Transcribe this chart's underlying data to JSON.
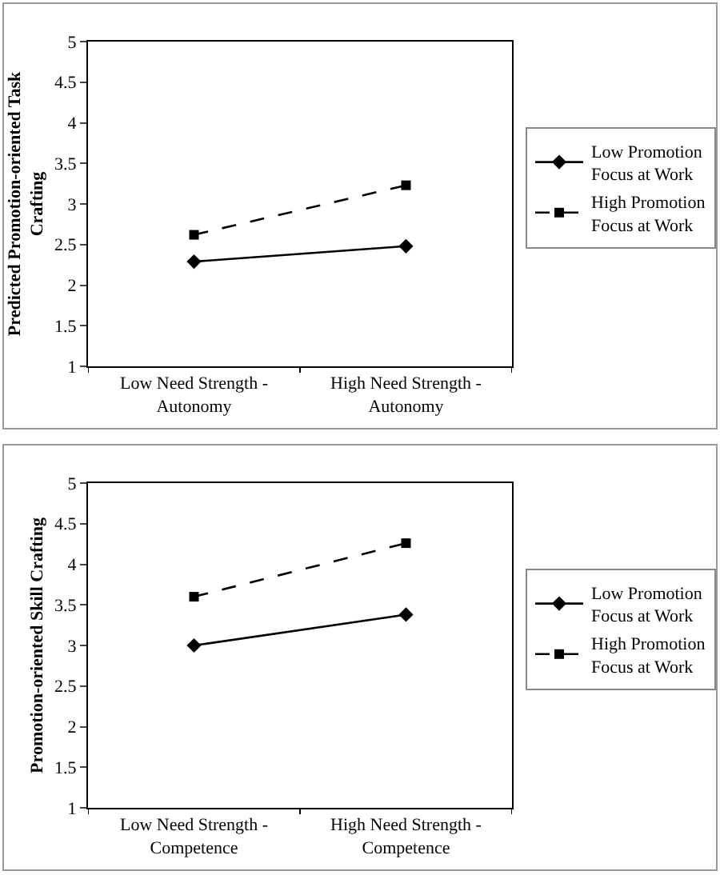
{
  "chart_data": [
    {
      "type": "line",
      "ylabel": "Predicted Promotion-oriented Task\nCrafting",
      "categories": [
        "Low Need Strength -\nAutonomy",
        "High Need Strength -\nAutonomy"
      ],
      "ylim": [
        1,
        5
      ],
      "yticks": [
        1,
        1.5,
        2,
        2.5,
        3,
        3.5,
        4,
        4.5,
        5
      ],
      "grid": false,
      "legend": "right",
      "series": [
        {
          "name": "Low Promotion\nFocus at Work",
          "color": "#000000",
          "values": [
            2.29,
            2.48
          ],
          "marker": "diamond",
          "line_style": "solid"
        },
        {
          "name": "High Promotion\nFocus at Work",
          "color": "#000000",
          "values": [
            2.62,
            3.23
          ],
          "marker": "square",
          "line_style": "dashed"
        }
      ]
    },
    {
      "type": "line",
      "ylabel": "Promotion-oriented Skill Crafting",
      "categories": [
        "Low Need Strength -\nCompetence",
        "High Need Strength -\nCompetence"
      ],
      "ylim": [
        1,
        5
      ],
      "yticks": [
        1,
        1.5,
        2,
        2.5,
        3,
        3.5,
        4,
        4.5,
        5
      ],
      "grid": false,
      "legend": "right",
      "series": [
        {
          "name": "Low Promotion\nFocus at Work",
          "color": "#000000",
          "values": [
            3.0,
            3.38
          ],
          "marker": "diamond",
          "line_style": "solid"
        },
        {
          "name": "High Promotion\nFocus at Work",
          "color": "#000000",
          "values": [
            3.6,
            4.26
          ],
          "marker": "square",
          "line_style": "dashed"
        }
      ]
    }
  ]
}
